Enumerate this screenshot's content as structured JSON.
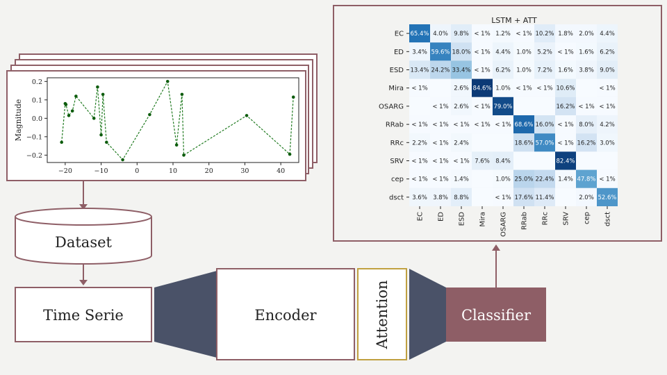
{
  "pipeline": {
    "dataset_label": "Dataset",
    "time_serie_label": "Time Serie",
    "encoder_label": "Encoder",
    "attention_label": "Attention",
    "classifier_label": "Classifier"
  },
  "colors": {
    "box_border": "#8e5e66",
    "classifier_fill": "#8e5e66",
    "connector_fill": "#4a5268",
    "attention_border": "#c0a040",
    "plot_line": "#1f7a1f"
  },
  "chart_data": [
    {
      "type": "line",
      "title": "",
      "xlabel": "",
      "ylabel": "Magnitude",
      "xlim": [
        -25,
        45
      ],
      "ylim": [
        -0.24,
        0.22
      ],
      "x_ticks": [
        -20,
        -10,
        0,
        10,
        20,
        30,
        40
      ],
      "y_ticks": [
        0.2,
        0.1,
        0.0,
        -0.1,
        -0.2
      ],
      "x_tick_labels": [
        "−20",
        "−10",
        "0",
        "10",
        "20",
        "30",
        "40"
      ],
      "y_tick_labels": [
        "0.2",
        "0.1",
        "0.0",
        "−0.1",
        "−0.2"
      ],
      "series": [
        {
          "x": [
            -21,
            -20,
            -19.8,
            -19,
            -18,
            -17,
            -12,
            -11,
            -10,
            -9.5,
            -8.5,
            -4,
            3.5,
            8.5,
            11,
            12.5,
            13,
            30.5,
            42.5,
            43.5
          ],
          "y": [
            -0.13,
            0.08,
            0.075,
            0.015,
            0.04,
            0.12,
            0.0,
            0.17,
            -0.09,
            0.13,
            -0.13,
            -0.225,
            0.02,
            0.2,
            -0.145,
            0.13,
            -0.2,
            0.015,
            -0.195,
            0.115
          ]
        }
      ]
    },
    {
      "type": "heatmap",
      "title": "LSTM + ATT",
      "row_labels": [
        "EC",
        "ED",
        "ESD",
        "Mira",
        "OSARG",
        "RRab",
        "RRc",
        "SRV",
        "cep",
        "dsct"
      ],
      "col_labels": [
        "EC",
        "ED",
        "ESD",
        "Mira",
        "OSARG",
        "RRab",
        "RRc",
        "SRV",
        "cep",
        "dsct"
      ],
      "values": [
        [
          65.4,
          4.0,
          9.8,
          0.5,
          1.2,
          0.5,
          10.2,
          1.8,
          2.0,
          4.4
        ],
        [
          3.4,
          59.6,
          18.0,
          0.5,
          4.4,
          1.0,
          5.2,
          0.5,
          1.6,
          6.2
        ],
        [
          13.4,
          24.2,
          33.4,
          0.5,
          6.2,
          1.0,
          7.2,
          1.6,
          3.8,
          9.0
        ],
        [
          0.5,
          0,
          2.6,
          84.6,
          1.0,
          0.5,
          0.5,
          10.6,
          0,
          0.5
        ],
        [
          0,
          0.5,
          2.6,
          0.5,
          79.0,
          0,
          0,
          16.2,
          0.5,
          0.5
        ],
        [
          0.5,
          0.5,
          0.5,
          0.5,
          0.5,
          68.6,
          16.0,
          0.5,
          8.0,
          4.2
        ],
        [
          2.2,
          0.5,
          2.4,
          0,
          0,
          18.6,
          57.0,
          0.5,
          16.2,
          3.0
        ],
        [
          0.5,
          0.5,
          0.5,
          7.6,
          8.4,
          0,
          0,
          82.4,
          0,
          0
        ],
        [
          0.5,
          0.5,
          1.4,
          0,
          1.0,
          25.0,
          22.4,
          1.4,
          47.8,
          0.5
        ],
        [
          3.6,
          3.8,
          8.8,
          0,
          0.5,
          17.6,
          11.4,
          0,
          2.0,
          52.6
        ]
      ],
      "cell_labels": [
        [
          "65.4%",
          "4.0%",
          "9.8%",
          "< 1%",
          "1.2%",
          "< 1%",
          "10.2%",
          "1.8%",
          "2.0%",
          "4.4%"
        ],
        [
          "3.4%",
          "59.6%",
          "18.0%",
          "< 1%",
          "4.4%",
          "1.0%",
          "5.2%",
          "< 1%",
          "1.6%",
          "6.2%"
        ],
        [
          "13.4%",
          "24.2%",
          "33.4%",
          "< 1%",
          "6.2%",
          "1.0%",
          "7.2%",
          "1.6%",
          "3.8%",
          "9.0%"
        ],
        [
          "< 1%",
          "",
          "2.6%",
          "84.6%",
          "1.0%",
          "< 1%",
          "< 1%",
          "10.6%",
          "",
          "< 1%"
        ],
        [
          "",
          "< 1%",
          "2.6%",
          "< 1%",
          "79.0%",
          "",
          "",
          "16.2%",
          "< 1%",
          "< 1%"
        ],
        [
          "< 1%",
          "< 1%",
          "< 1%",
          "< 1%",
          "< 1%",
          "68.6%",
          "16.0%",
          "< 1%",
          "8.0%",
          "4.2%"
        ],
        [
          "2.2%",
          "< 1%",
          "2.4%",
          "",
          "",
          "18.6%",
          "57.0%",
          "< 1%",
          "16.2%",
          "3.0%"
        ],
        [
          "< 1%",
          "< 1%",
          "< 1%",
          "7.6%",
          "8.4%",
          "",
          "",
          "82.4%",
          "",
          ""
        ],
        [
          "< 1%",
          "< 1%",
          "1.4%",
          "",
          "1.0%",
          "25.0%",
          "22.4%",
          "1.4%",
          "47.8%",
          "< 1%"
        ],
        [
          "3.6%",
          "3.8%",
          "8.8%",
          "",
          "< 1%",
          "17.6%",
          "11.4%",
          "",
          "2.0%",
          "52.6%"
        ]
      ]
    }
  ]
}
